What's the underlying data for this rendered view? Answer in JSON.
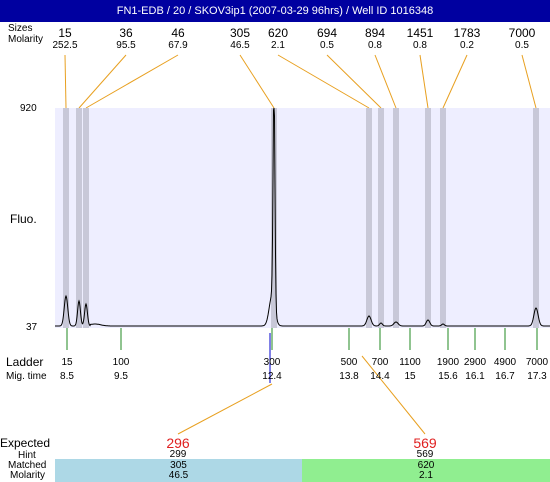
{
  "title": "FN1-EDB / 20 / SKOV3ip1 (2007-03-29 96hrs) / Well ID 1016348",
  "row_labels": {
    "size": "Sizes",
    "molarity": "Molarity",
    "fluo": "Fluo.",
    "ladder": "Ladder",
    "mig_time": "Mig. time",
    "expected": "Expected",
    "hint": "Hint",
    "matched": "Matched",
    "molarity_bottom": "Molarity"
  },
  "colors": {
    "title_bg": "#0000a0",
    "plot_bg": "#eeeeff",
    "band": "#c8c8d8",
    "connector": "#e8a020",
    "ladder_tick": "#228822",
    "expected_text": "#e02020",
    "matched_bar_1": "#add8e6",
    "matched_bar_2": "#90ee90"
  },
  "chart_data": {
    "type": "line",
    "ylabel": "Fluo.",
    "ylim": [
      37,
      920
    ],
    "ytick_labels": [
      "920",
      "37"
    ],
    "peaks": [
      {
        "size": "15",
        "molarity": "252.5"
      },
      {
        "size": "36",
        "molarity": "95.5"
      },
      {
        "size": "46",
        "molarity": "67.9"
      },
      {
        "size": "305",
        "molarity": "46.5"
      },
      {
        "size": "620",
        "molarity": "2.1"
      },
      {
        "size": "694",
        "molarity": "0.5"
      },
      {
        "size": "894",
        "molarity": "0.8"
      },
      {
        "size": "1451",
        "molarity": "0.8"
      },
      {
        "size": "1783",
        "molarity": "0.2"
      },
      {
        "size": "7000",
        "molarity": "0.5"
      }
    ],
    "ladder": [
      {
        "size": "15",
        "time": "8.5"
      },
      {
        "size": "100",
        "time": "9.5"
      },
      {
        "size": "300",
        "time": "12.4"
      },
      {
        "size": "500",
        "time": "13.8"
      },
      {
        "size": "700",
        "time": "14.4"
      },
      {
        "size": "1100",
        "time": "15"
      },
      {
        "size": "1900",
        "time": "15.6"
      },
      {
        "size": "2900",
        "time": "16.1"
      },
      {
        "size": "4900",
        "time": "16.7"
      },
      {
        "size": "7000",
        "time": "17.3"
      }
    ],
    "expected": [
      {
        "expected": "296",
        "hint": "299",
        "matched": "305",
        "molarity": "46.5"
      },
      {
        "expected": "569",
        "hint": "569",
        "matched": "620",
        "molarity": "2.1"
      }
    ]
  }
}
